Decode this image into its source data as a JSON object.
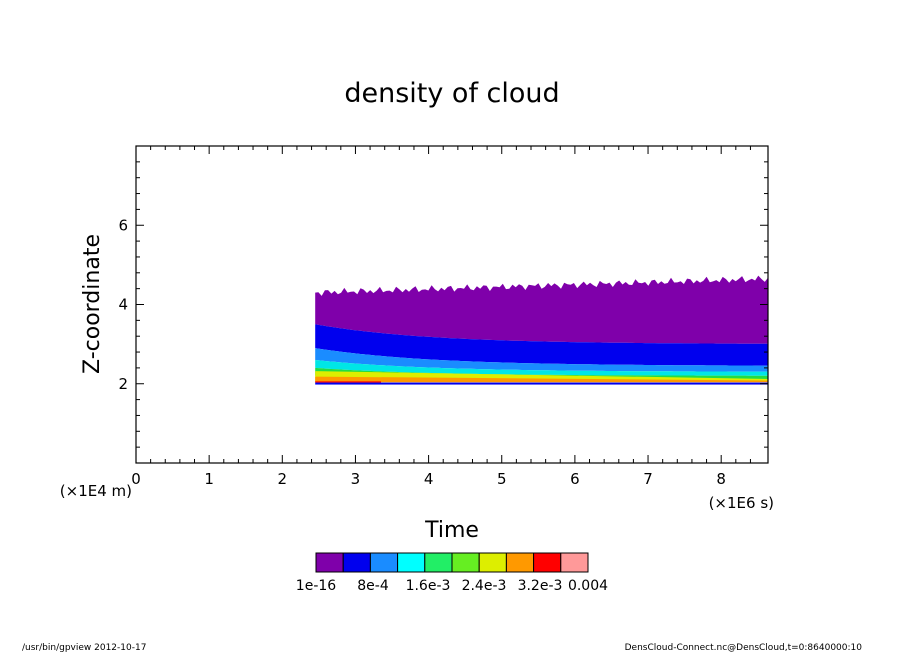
{
  "chart_data": {
    "type": "heatmap",
    "title": "density of cloud",
    "xlabel": "Time",
    "ylabel": "Z-coordinate",
    "x_unit": "(×1E6 s)",
    "y_unit": "(×1E4 m)",
    "xlim": [
      0,
      8.64
    ],
    "ylim": [
      0,
      8
    ],
    "x_ticks": [
      0,
      1,
      2,
      3,
      4,
      5,
      6,
      7,
      8
    ],
    "y_ticks": [
      2,
      4,
      6
    ],
    "data_x_range": [
      2.45,
      8.64
    ],
    "bands": [
      {
        "level": "1e-16",
        "color": "#7f00aa",
        "z_bottom_start": 3.5,
        "z_bottom_end": 3.0,
        "z_top_start": 4.3,
        "z_top_end": 4.65
      },
      {
        "level": "8e-4",
        "color": "#0000ee",
        "z_bottom_start": 2.9,
        "z_bottom_end": 2.45,
        "z_top_start": 3.5,
        "z_top_end": 3.0
      },
      {
        "level": "1.6e-3",
        "color": "#1a8cff",
        "z_bottom_start": 2.6,
        "z_bottom_end": 2.3,
        "z_top_start": 2.9,
        "z_top_end": 2.45
      },
      {
        "level": "2.4e-3",
        "color": "#00e6e6",
        "z_bottom_start": 2.4,
        "z_bottom_end": 2.2,
        "z_top_start": 2.6,
        "z_top_end": 2.3
      },
      {
        "level": "3.2e-3",
        "color": "#22dd44",
        "z_bottom_start": 2.2,
        "z_bottom_end": 2.1,
        "z_top_start": 2.4,
        "z_top_end": 2.2
      }
    ],
    "colorbar": {
      "colors": [
        "#7f00aa",
        "#0000ee",
        "#1a8cff",
        "#00ffff",
        "#22ee66",
        "#66ee22",
        "#ddee00",
        "#ff9900",
        "#ff0000",
        "#ff9999"
      ],
      "labels": [
        "1e-16",
        "8e-4",
        "1.6e-3",
        "2.4e-3",
        "3.2e-3",
        "0.004"
      ]
    }
  },
  "footer": {
    "left": "/usr/bin/gpview   2012-10-17",
    "right": "DensCloud-Connect.nc@DensCloud,t=0:8640000:10"
  }
}
